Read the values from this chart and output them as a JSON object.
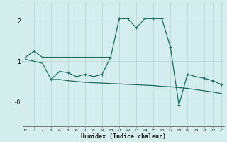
{
  "title": "",
  "xlabel": "Humidex (Indice chaleur)",
  "line_color": "#1a6b5e",
  "bg_color": "#d4eeee",
  "grid_color": "#b8d8d8",
  "line1_x": [
    0,
    1,
    2,
    10
  ],
  "line1_y": [
    1.1,
    1.25,
    1.1,
    1.1
  ],
  "line2_x": [
    3,
    4,
    5,
    6,
    7,
    8,
    9,
    10,
    11,
    12,
    13,
    14,
    15,
    16,
    17,
    18,
    19,
    20,
    21,
    22,
    23
  ],
  "line2_y": [
    0.55,
    0.75,
    0.72,
    0.62,
    0.68,
    0.62,
    0.68,
    1.1,
    2.05,
    2.05,
    1.82,
    2.05,
    2.05,
    2.05,
    1.35,
    -0.08,
    0.68,
    0.62,
    0.58,
    0.52,
    0.42
  ],
  "line3_x": [
    0,
    1,
    2,
    3,
    4,
    5,
    6,
    7,
    8,
    9,
    10,
    11,
    12,
    13,
    14,
    15,
    16,
    17,
    18,
    19,
    20,
    21,
    22,
    23
  ],
  "line3_y": [
    1.05,
    1.0,
    0.95,
    0.55,
    0.55,
    0.52,
    0.5,
    0.48,
    0.47,
    0.46,
    0.45,
    0.44,
    0.43,
    0.42,
    0.41,
    0.4,
    0.38,
    0.37,
    0.35,
    0.33,
    0.3,
    0.27,
    0.24,
    0.2
  ],
  "ylim": [
    -0.6,
    2.45
  ],
  "xlim": [
    -0.3,
    23.3
  ],
  "figsize": [
    3.2,
    2.0
  ],
  "dpi": 100
}
